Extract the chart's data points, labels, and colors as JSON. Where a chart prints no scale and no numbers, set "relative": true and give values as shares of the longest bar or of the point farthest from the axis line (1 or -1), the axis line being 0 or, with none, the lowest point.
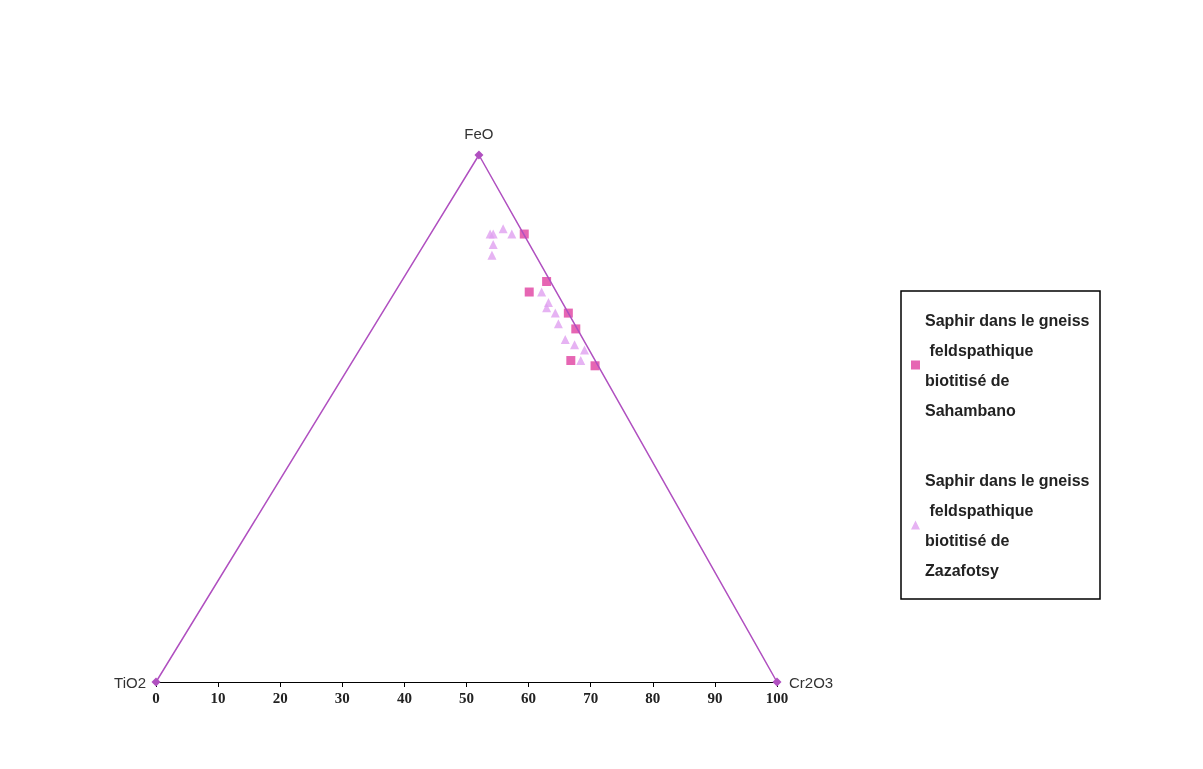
{
  "chart_data": {
    "type": "scatter",
    "relative": true,
    "xlim": [
      0,
      100
    ],
    "xticks": [
      0,
      10,
      20,
      30,
      40,
      50,
      60,
      70,
      80,
      90,
      100
    ],
    "grid": false,
    "legend": "right",
    "tick_labels": "x",
    "annotations": [
      {
        "text": "TiO2",
        "x": 0,
        "y": 0
      },
      {
        "text": "FeO",
        "x": 52,
        "y": 1
      },
      {
        "text": "Cr2O3",
        "x": 100,
        "y": 0
      }
    ],
    "series": [
      {
        "type": "line",
        "color": "#b050c0",
        "marker": "diamond",
        "x": [
          0,
          52,
          100
        ],
        "values": [
          0,
          1,
          0
        ]
      },
      {
        "name": "Saphir dans le gneiss feldspathique biotitisé de Sahambano",
        "color": "#e040a0",
        "marker": "square",
        "x": [
          59.3,
          62.9,
          60.1,
          66.4,
          67.6,
          66.8,
          70.7
        ],
        "values": [
          0.85,
          0.76,
          0.74,
          0.7,
          0.67,
          0.61,
          0.6
        ]
      },
      {
        "name": "Saphir dans le gneiss feldspathique biotitisé de Zazafotsy",
        "color": "#e0a0f0",
        "marker": "triangle",
        "x": [
          54.3,
          53.8,
          55.9,
          57.3,
          54.3,
          54.1,
          62.1,
          63.2,
          62.9,
          64.3,
          64.8,
          65.9,
          67.4,
          69.0,
          68.4
        ],
        "values": [
          0.85,
          0.85,
          0.86,
          0.85,
          0.83,
          0.81,
          0.74,
          0.72,
          0.71,
          0.7,
          0.68,
          0.65,
          0.64,
          0.63,
          0.61
        ]
      }
    ]
  }
}
